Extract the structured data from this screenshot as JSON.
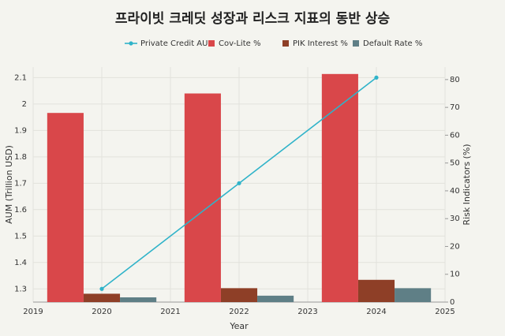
{
  "chart_data": {
    "type": "bar",
    "title": "프라이빗 크레딧 성장과 리스크 지표의 동반 상승",
    "x_label": "Year",
    "y_label": "AUM (Trillion USD)",
    "y2_label": "Risk Indicators (%)",
    "x": [
      2020,
      2022,
      2024
    ],
    "xlim": [
      2019,
      2025
    ],
    "xticks": [
      2019,
      2020,
      2021,
      2022,
      2023,
      2024,
      2025
    ],
    "ylim": [
      1.25,
      2.14
    ],
    "yticks": [
      1.3,
      1.4,
      1.5,
      1.6,
      1.7,
      1.8,
      1.9,
      2,
      2.1
    ],
    "y2lim": [
      0,
      84.5
    ],
    "y2ticks": [
      0,
      10,
      20,
      30,
      40,
      50,
      60,
      70,
      80
    ],
    "grid": true,
    "legend": "top",
    "series": [
      {
        "name": "Private Credit AUM",
        "type": "line",
        "color": "#2fb3c9",
        "values": [
          1.3,
          1.7,
          2.1
        ]
      },
      {
        "name": "Cov-Lite %",
        "axis": "y2",
        "color": "#d9474a",
        "values": [
          68,
          75,
          82
        ]
      },
      {
        "name": "PIK Interest %",
        "axis": "y2",
        "color": "#8e3f27",
        "values": [
          3,
          5,
          8
        ]
      },
      {
        "name": "Default Rate %",
        "axis": "y2",
        "color": "#5f7f86",
        "values": [
          1.7,
          2.3,
          5
        ]
      }
    ]
  }
}
